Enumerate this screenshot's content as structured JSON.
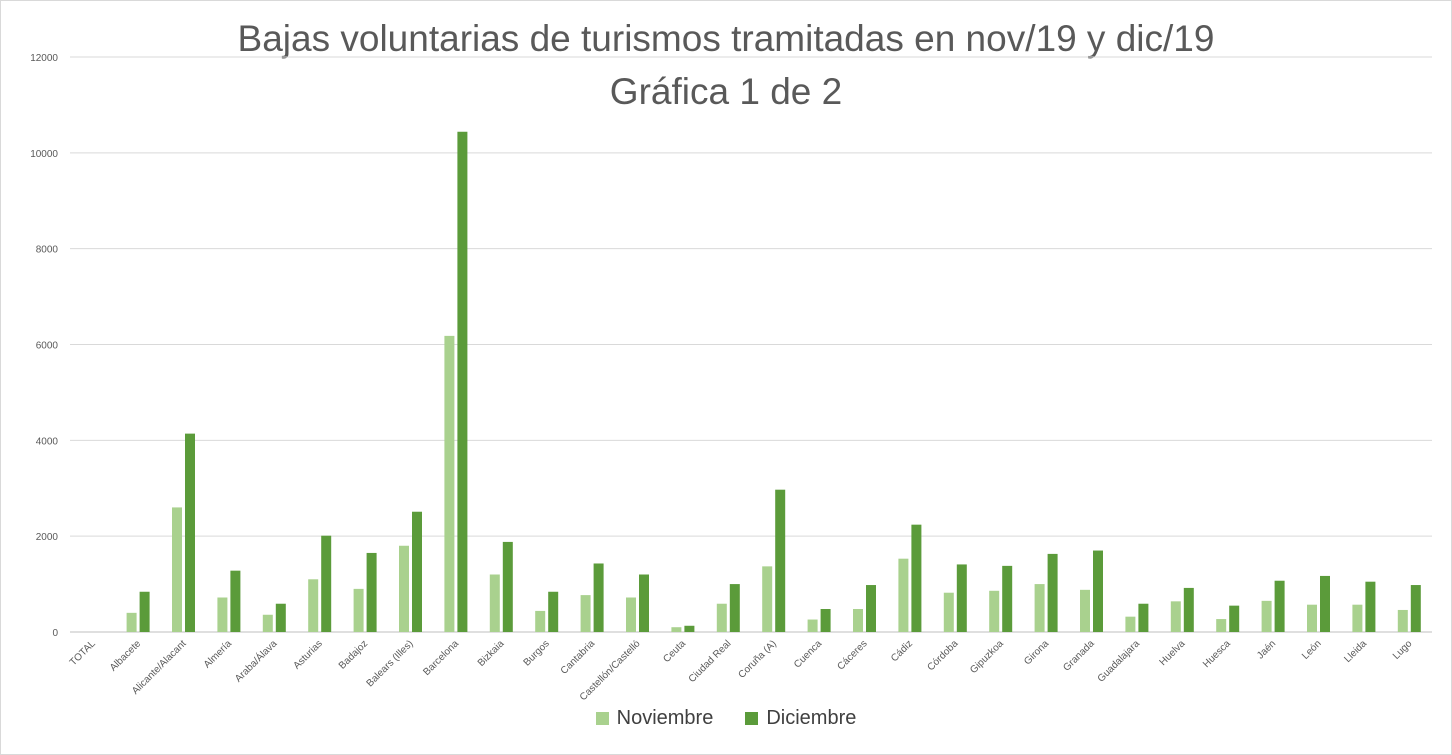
{
  "chart_data": {
    "type": "bar",
    "title_line1": "Bajas voluntarias de turismos tramitadas en nov/19 y dic/19",
    "title_line2": "Gráfica 1 de 2",
    "ylim": [
      0,
      12000
    ],
    "yticks": [
      0,
      2000,
      4000,
      6000,
      8000,
      10000,
      12000
    ],
    "grid": true,
    "legend_position": "bottom",
    "categories": [
      "TOTAL",
      "Albacete",
      "Alicante/Alacant",
      "Almería",
      "Araba/Álava",
      "Asturias",
      "Badajoz",
      "Balears (Illes)",
      "Barcelona",
      "Bizkaia",
      "Burgos",
      "Cantabria",
      "Castellón/Castelló",
      "Ceuta",
      "Ciudad Real",
      "Coruña (A)",
      "Cuenca",
      "Cáceres",
      "Cádiz",
      "Córdoba",
      "Gipuzkoa",
      "Girona",
      "Granada",
      "Guadalajara",
      "Huelva",
      "Huesca",
      "Jaén",
      "León",
      "Lleida",
      "Lugo"
    ],
    "series": [
      {
        "name": "Noviembre",
        "color": "#a9d18e",
        "values": [
          0,
          400,
          2600,
          720,
          360,
          1100,
          900,
          1800,
          6180,
          1200,
          440,
          770,
          720,
          100,
          590,
          1370,
          260,
          480,
          1530,
          820,
          860,
          1000,
          880,
          320,
          640,
          270,
          650,
          570,
          570,
          460
        ]
      },
      {
        "name": "Diciembre",
        "color": "#5b9b3a",
        "values": [
          0,
          840,
          4140,
          1280,
          590,
          2010,
          1650,
          2510,
          10440,
          1880,
          840,
          1430,
          1200,
          130,
          1000,
          2970,
          480,
          980,
          2240,
          1410,
          1380,
          1630,
          1700,
          590,
          920,
          550,
          1070,
          1170,
          1050,
          980
        ]
      }
    ]
  }
}
